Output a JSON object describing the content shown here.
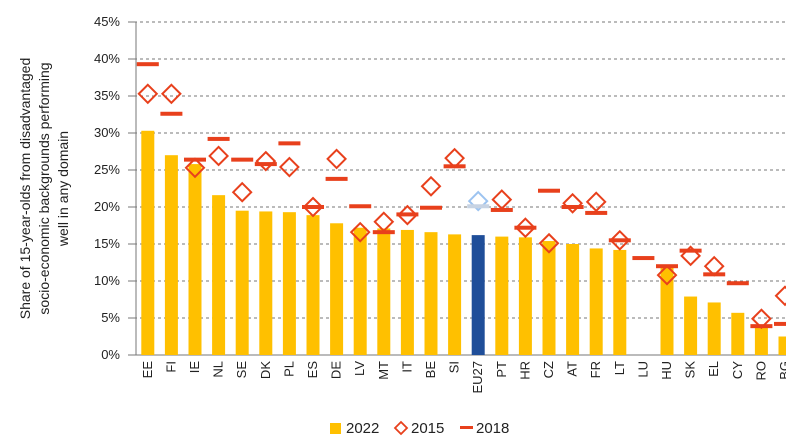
{
  "chart_data": {
    "type": "bar",
    "ylabel": [
      "Share of 15-year-olds from disadvantaged",
      "socio-economic backgrounds performing",
      "well  in any domain"
    ],
    "categories": [
      "EE",
      "FI",
      "IE",
      "NL",
      "SE",
      "DK",
      "PL",
      "ES",
      "DE",
      "LV",
      "MT",
      "IT",
      "BE",
      "SI",
      "EU27",
      "PT",
      "HR",
      "CZ",
      "AT",
      "FR",
      "LT",
      "LU",
      "HU",
      "SK",
      "EL",
      "CY",
      "RO",
      "BG"
    ],
    "ylim": [
      0,
      45
    ],
    "yticks": [
      {
        "value": 0,
        "label": "0%"
      },
      {
        "value": 5,
        "label": "5%"
      },
      {
        "value": 10,
        "label": "10%"
      },
      {
        "value": 15,
        "label": "15%"
      },
      {
        "value": 20,
        "label": "20%"
      },
      {
        "value": 25,
        "label": "25%"
      },
      {
        "value": 30,
        "label": "30%"
      },
      {
        "value": 35,
        "label": "35%"
      },
      {
        "value": 40,
        "label": "40%"
      },
      {
        "value": 45,
        "label": "45%"
      }
    ],
    "grid": true,
    "legend": "bottom",
    "series": [
      {
        "name": "2022",
        "mark": "bar",
        "color": "#ffc000",
        "highlight_color": "#1f4e99",
        "values": [
          30.3,
          27.0,
          25.8,
          21.6,
          19.5,
          19.4,
          19.3,
          18.9,
          17.8,
          17.2,
          17.1,
          16.9,
          16.6,
          16.3,
          16.2,
          16.0,
          15.9,
          15.4,
          15.0,
          14.4,
          14.2,
          null,
          11.9,
          7.9,
          7.1,
          5.7,
          3.8,
          2.5
        ]
      },
      {
        "name": "2015",
        "mark": "diamond",
        "color": "#e8401c",
        "highlight_color": "#9cc3f0",
        "values": [
          35.3,
          35.3,
          25.3,
          26.9,
          22.0,
          26.2,
          25.4,
          20.0,
          26.5,
          16.6,
          18.0,
          18.9,
          22.8,
          26.6,
          20.8,
          21.0,
          17.2,
          15.1,
          20.5,
          20.7,
          15.5,
          null,
          10.8,
          13.4,
          12.0,
          null,
          4.9,
          8.0
        ]
      },
      {
        "name": "2018",
        "mark": "dash",
        "color": "#e8401c",
        "highlight_color": "#c7d3e3",
        "values": [
          39.3,
          32.6,
          26.4,
          29.2,
          26.4,
          25.8,
          28.6,
          20.0,
          23.8,
          20.1,
          16.6,
          19.0,
          19.9,
          25.5,
          20.1,
          19.6,
          17.2,
          22.2,
          20.0,
          19.2,
          15.5,
          13.1,
          12.0,
          14.1,
          10.9,
          9.7,
          3.9,
          4.2
        ]
      }
    ]
  }
}
